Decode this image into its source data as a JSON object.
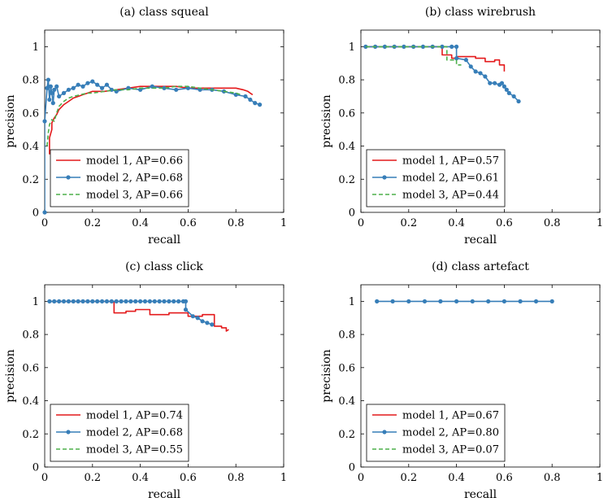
{
  "figure": {
    "type": "precision-recall-grid"
  },
  "chart_data": [
    {
      "type": "line",
      "title": "(a) class squeal",
      "xlabel": "recall",
      "ylabel": "precision",
      "xlim": [
        0,
        1
      ],
      "ylim": [
        0,
        1.1
      ],
      "xticks": [
        "0",
        "0.2",
        "0.4",
        "0.6",
        "0.8",
        "1"
      ],
      "yticks": [
        "0",
        "0.2",
        "0.4",
        "0.6",
        "0.8",
        "1"
      ],
      "legend_position": "bottom-left",
      "series": [
        {
          "name": "model 1, AP=0.66",
          "color": "#e41a1c",
          "style": "solid",
          "markers": false,
          "x": [
            0.02,
            0.02,
            0.03,
            0.03,
            0.04,
            0.05,
            0.06,
            0.08,
            0.1,
            0.12,
            0.14,
            0.16,
            0.18,
            0.2,
            0.25,
            0.3,
            0.35,
            0.4,
            0.45,
            0.5,
            0.55,
            0.6,
            0.65,
            0.7,
            0.75,
            0.8,
            0.83,
            0.85,
            0.86,
            0.87
          ],
          "y": [
            0.35,
            0.45,
            0.5,
            0.54,
            0.57,
            0.59,
            0.62,
            0.65,
            0.67,
            0.69,
            0.7,
            0.71,
            0.72,
            0.73,
            0.73,
            0.74,
            0.75,
            0.76,
            0.76,
            0.76,
            0.76,
            0.75,
            0.75,
            0.75,
            0.75,
            0.75,
            0.74,
            0.73,
            0.72,
            0.71
          ]
        },
        {
          "name": "model 2, AP=0.68",
          "color": "#377eb8",
          "style": "solid",
          "markers": true,
          "x": [
            0.0,
            0.0,
            0.01,
            0.015,
            0.02,
            0.025,
            0.03,
            0.035,
            0.04,
            0.05,
            0.06,
            0.08,
            0.1,
            0.12,
            0.14,
            0.16,
            0.18,
            0.2,
            0.22,
            0.24,
            0.26,
            0.28,
            0.3,
            0.35,
            0.4,
            0.45,
            0.5,
            0.55,
            0.6,
            0.65,
            0.7,
            0.75,
            0.8,
            0.84,
            0.86,
            0.88,
            0.9
          ],
          "y": [
            0.0,
            0.55,
            0.75,
            0.8,
            0.68,
            0.76,
            0.72,
            0.66,
            0.74,
            0.76,
            0.7,
            0.72,
            0.74,
            0.75,
            0.77,
            0.76,
            0.78,
            0.79,
            0.77,
            0.75,
            0.77,
            0.74,
            0.73,
            0.75,
            0.74,
            0.76,
            0.75,
            0.74,
            0.75,
            0.74,
            0.74,
            0.73,
            0.71,
            0.7,
            0.68,
            0.66,
            0.65
          ]
        },
        {
          "name": "model 3, AP=0.66",
          "color": "#4daf4a",
          "style": "dashed",
          "markers": false,
          "x": [
            0.01,
            0.015,
            0.02,
            0.03,
            0.04,
            0.05,
            0.06,
            0.08,
            0.1,
            0.12,
            0.15,
            0.18,
            0.2,
            0.25,
            0.3,
            0.35,
            0.4,
            0.45,
            0.5,
            0.55,
            0.6,
            0.65,
            0.7,
            0.75,
            0.8,
            0.82
          ],
          "y": [
            0.4,
            0.48,
            0.53,
            0.56,
            0.55,
            0.6,
            0.64,
            0.67,
            0.69,
            0.7,
            0.71,
            0.72,
            0.72,
            0.73,
            0.74,
            0.74,
            0.75,
            0.75,
            0.75,
            0.76,
            0.76,
            0.75,
            0.74,
            0.73,
            0.72,
            0.71
          ]
        }
      ]
    },
    {
      "type": "line",
      "title": "(b) class wirebrush",
      "xlabel": "recall",
      "ylabel": "precision",
      "xlim": [
        0,
        1
      ],
      "ylim": [
        0,
        1.1
      ],
      "xticks": [
        "0",
        "0.2",
        "0.4",
        "0.6",
        "0.8",
        "1"
      ],
      "yticks": [
        "0",
        "0.2",
        "0.4",
        "0.6",
        "0.8",
        "1"
      ],
      "legend_position": "bottom-left",
      "series": [
        {
          "name": "model 1, AP=0.57",
          "color": "#e41a1c",
          "style": "solid",
          "markers": false,
          "x": [
            0.02,
            0.34,
            0.34,
            0.38,
            0.38,
            0.4,
            0.4,
            0.48,
            0.48,
            0.52,
            0.52,
            0.56,
            0.56,
            0.58,
            0.58,
            0.6,
            0.6
          ],
          "y": [
            1.0,
            1.0,
            0.95,
            0.95,
            0.93,
            0.93,
            0.94,
            0.94,
            0.93,
            0.93,
            0.91,
            0.91,
            0.92,
            0.92,
            0.89,
            0.89,
            0.85
          ]
        },
        {
          "name": "model 2, AP=0.61",
          "color": "#377eb8",
          "style": "solid",
          "markers": true,
          "x": [
            0.02,
            0.06,
            0.1,
            0.14,
            0.18,
            0.22,
            0.26,
            0.3,
            0.34,
            0.38,
            0.4,
            0.4,
            0.44,
            0.46,
            0.48,
            0.5,
            0.52,
            0.54,
            0.56,
            0.58,
            0.59,
            0.6,
            0.61,
            0.62,
            0.64,
            0.66
          ],
          "y": [
            1.0,
            1.0,
            1.0,
            1.0,
            1.0,
            1.0,
            1.0,
            1.0,
            1.0,
            1.0,
            1.0,
            0.93,
            0.92,
            0.88,
            0.85,
            0.84,
            0.82,
            0.78,
            0.78,
            0.77,
            0.78,
            0.76,
            0.74,
            0.72,
            0.7,
            0.67
          ]
        },
        {
          "name": "model 3, AP=0.44",
          "color": "#4daf4a",
          "style": "dashed",
          "markers": false,
          "x": [
            0.02,
            0.36,
            0.36,
            0.4,
            0.4,
            0.42
          ],
          "y": [
            1.0,
            1.0,
            0.92,
            0.92,
            0.89,
            0.89
          ]
        }
      ]
    },
    {
      "type": "line",
      "title": "(c) class click",
      "xlabel": "recall",
      "ylabel": "precision",
      "xlim": [
        0,
        1
      ],
      "ylim": [
        0,
        1.1
      ],
      "xticks": [
        "0",
        "0.2",
        "0.4",
        "0.6",
        "0.8",
        "1"
      ],
      "yticks": [
        "0",
        "0.2",
        "0.4",
        "0.6",
        "0.8",
        "1"
      ],
      "legend_position": "bottom-left",
      "series": [
        {
          "name": "model 1, AP=0.74",
          "color": "#e41a1c",
          "style": "solid",
          "markers": false,
          "x": [
            0.02,
            0.29,
            0.29,
            0.34,
            0.34,
            0.38,
            0.38,
            0.44,
            0.44,
            0.52,
            0.52,
            0.6,
            0.6,
            0.66,
            0.66,
            0.71,
            0.71,
            0.74,
            0.74,
            0.76,
            0.76,
            0.77
          ],
          "y": [
            1.0,
            1.0,
            0.93,
            0.93,
            0.94,
            0.94,
            0.95,
            0.95,
            0.92,
            0.92,
            0.93,
            0.93,
            0.91,
            0.91,
            0.92,
            0.92,
            0.85,
            0.85,
            0.84,
            0.84,
            0.82,
            0.83
          ]
        },
        {
          "name": "model 2, AP=0.68",
          "color": "#377eb8",
          "style": "solid",
          "markers": true,
          "x": [
            0.02,
            0.04,
            0.06,
            0.08,
            0.1,
            0.12,
            0.14,
            0.16,
            0.18,
            0.2,
            0.22,
            0.24,
            0.26,
            0.28,
            0.3,
            0.32,
            0.34,
            0.36,
            0.38,
            0.4,
            0.42,
            0.44,
            0.46,
            0.48,
            0.5,
            0.52,
            0.54,
            0.56,
            0.58,
            0.59,
            0.59,
            0.62,
            0.64,
            0.66,
            0.68,
            0.7
          ],
          "y": [
            1.0,
            1.0,
            1.0,
            1.0,
            1.0,
            1.0,
            1.0,
            1.0,
            1.0,
            1.0,
            1.0,
            1.0,
            1.0,
            1.0,
            1.0,
            1.0,
            1.0,
            1.0,
            1.0,
            1.0,
            1.0,
            1.0,
            1.0,
            1.0,
            1.0,
            1.0,
            1.0,
            1.0,
            1.0,
            1.0,
            0.95,
            0.91,
            0.9,
            0.88,
            0.87,
            0.86
          ]
        },
        {
          "name": "model 3, AP=0.55",
          "color": "#4daf4a",
          "style": "dashed",
          "markers": false,
          "x": [],
          "y": []
        }
      ]
    },
    {
      "type": "line",
      "title": "(d) class artefact",
      "xlabel": "recall",
      "ylabel": "precision",
      "xlim": [
        0,
        1
      ],
      "ylim": [
        0,
        1.1
      ],
      "xticks": [
        "0",
        "0.2",
        "0.4",
        "0.6",
        "0.8",
        "1"
      ],
      "yticks": [
        "0",
        "0.2",
        "0.4",
        "0.6",
        "0.8",
        "1"
      ],
      "legend_position": "bottom-left",
      "series": [
        {
          "name": "model 1, AP=0.67",
          "color": "#e41a1c",
          "style": "solid",
          "markers": false,
          "x": [],
          "y": []
        },
        {
          "name": "model 2, AP=0.80",
          "color": "#377eb8",
          "style": "solid",
          "markers": true,
          "x": [
            0.067,
            0.133,
            0.2,
            0.267,
            0.333,
            0.4,
            0.467,
            0.533,
            0.6,
            0.667,
            0.733,
            0.8
          ],
          "y": [
            1.0,
            1.0,
            1.0,
            1.0,
            1.0,
            1.0,
            1.0,
            1.0,
            1.0,
            1.0,
            1.0,
            1.0
          ]
        },
        {
          "name": "model 3, AP=0.07",
          "color": "#4daf4a",
          "style": "dashed",
          "markers": false,
          "x": [],
          "y": []
        }
      ]
    }
  ]
}
